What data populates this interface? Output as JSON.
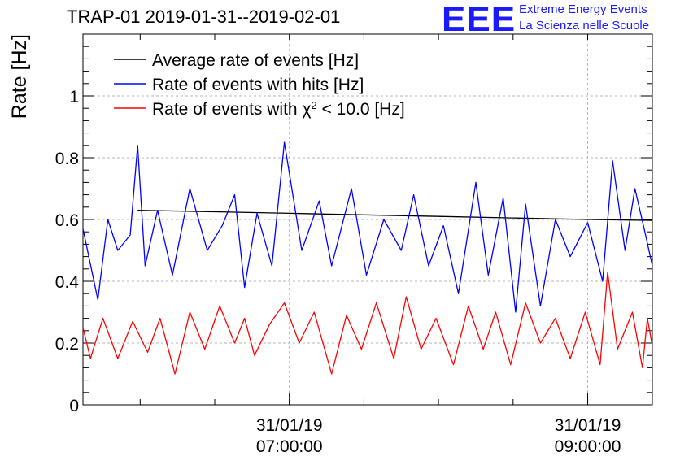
{
  "header": {
    "title": "TRAP-01 2019-01-31--2019-02-01",
    "logo_mark": "EEE",
    "logo_line1": "Extreme Energy Events",
    "logo_line2": "La Scienza nelle Scuole"
  },
  "colors": {
    "average": "#000000",
    "hits": "#0000ff",
    "chi2": "#ff0000",
    "logo": "#1a1aff"
  },
  "chart_data": {
    "type": "line",
    "title": "TRAP-01 2019-01-31--2019-02-01",
    "xlabel": "",
    "ylabel": "Rate [Hz]",
    "ylim": [
      0,
      1.2
    ],
    "yticks": [
      0,
      0.2,
      0.4,
      0.6,
      0.8,
      1
    ],
    "ytick_labels": [
      "0",
      "0.2",
      "0.4",
      "0.6",
      "0.8",
      "1"
    ],
    "xlim": [
      "31/01/19 05:37:00",
      "31/01/19 09:26:00"
    ],
    "xticks": [
      {
        "t": "31/01/19 07:00:00",
        "label_date": "31/01/19",
        "label_time": "07:00:00"
      },
      {
        "t": "31/01/19 09:00:00",
        "label_date": "31/01/19",
        "label_time": "09:00:00"
      }
    ],
    "grid": true,
    "legend_position": "top-left",
    "legend": [
      {
        "label": "Average rate of events [Hz]",
        "series": "average"
      },
      {
        "label": "Rate of events with hits [Hz]",
        "series": "hits"
      },
      {
        "label_prefix": "Rate of events with ",
        "label_symbol": "χ",
        "label_sup": "2",
        "label_suffix": " < 10.0 [Hz]",
        "series": "chi2"
      }
    ],
    "series": [
      {
        "key": "average",
        "x": [
          "31/01/19 05:59:00",
          "31/01/19 06:30:00",
          "31/01/19 07:00:00",
          "31/01/19 07:30:00",
          "31/01/19 08:00:00",
          "31/01/19 08:30:00",
          "31/01/19 09:00:00",
          "31/01/19 09:26:00"
        ],
        "values": [
          0.63,
          0.625,
          0.62,
          0.615,
          0.61,
          0.605,
          0.6,
          0.597
        ]
      },
      {
        "key": "hits",
        "x": [
          "31/01/19 05:37:00",
          "31/01/19 05:43:00",
          "31/01/19 05:47:00",
          "31/01/19 05:51:00",
          "31/01/19 05:56:00",
          "31/01/19 05:59:00",
          "31/01/19 06:02:00",
          "31/01/19 06:07:00",
          "31/01/19 06:13:00",
          "31/01/19 06:20:00",
          "31/01/19 06:27:00",
          "31/01/19 06:33:00",
          "31/01/19 06:38:00",
          "31/01/19 06:42:00",
          "31/01/19 06:47:00",
          "31/01/19 06:53:00",
          "31/01/19 06:58:00",
          "31/01/19 07:05:00",
          "31/01/19 07:12:00",
          "31/01/19 07:17:00",
          "31/01/19 07:25:00",
          "31/01/19 07:31:00",
          "31/01/19 07:38:00",
          "31/01/19 07:45:00",
          "31/01/19 07:50:00",
          "31/01/19 07:56:00",
          "31/01/19 08:02:00",
          "31/01/19 08:08:00",
          "31/01/19 08:15:00",
          "31/01/19 08:20:00",
          "31/01/19 08:26:00",
          "31/01/19 08:31:00",
          "31/01/19 08:35:00",
          "31/01/19 08:41:00",
          "31/01/19 08:47:00",
          "31/01/19 08:53:00",
          "31/01/19 09:00:00",
          "31/01/19 09:06:00",
          "31/01/19 09:10:00",
          "31/01/19 09:15:00",
          "31/01/19 09:19:00",
          "31/01/19 09:23:00",
          "31/01/19 09:26:00"
        ],
        "values": [
          0.57,
          0.34,
          0.6,
          0.5,
          0.55,
          0.84,
          0.45,
          0.63,
          0.42,
          0.7,
          0.5,
          0.58,
          0.68,
          0.38,
          0.62,
          0.45,
          0.85,
          0.5,
          0.66,
          0.45,
          0.7,
          0.42,
          0.6,
          0.5,
          0.68,
          0.45,
          0.58,
          0.36,
          0.72,
          0.42,
          0.67,
          0.3,
          0.65,
          0.32,
          0.6,
          0.48,
          0.59,
          0.4,
          0.79,
          0.5,
          0.7,
          0.56,
          0.45
        ]
      },
      {
        "key": "chi2",
        "x": [
          "31/01/19 05:37:00",
          "31/01/19 05:40:00",
          "31/01/19 05:45:00",
          "31/01/19 05:51:00",
          "31/01/19 05:57:00",
          "31/01/19 06:03:00",
          "31/01/19 06:08:00",
          "31/01/19 06:14:00",
          "31/01/19 06:20:00",
          "31/01/19 06:26:00",
          "31/01/19 06:32:00",
          "31/01/19 06:38:00",
          "31/01/19 06:42:00",
          "31/01/19 06:46:00",
          "31/01/19 06:52:00",
          "31/01/19 06:58:00",
          "31/01/19 07:04:00",
          "31/01/19 07:10:00",
          "31/01/19 07:17:00",
          "31/01/19 07:23:00",
          "31/01/19 07:29:00",
          "31/01/19 07:35:00",
          "31/01/19 07:42:00",
          "31/01/19 07:47:00",
          "31/01/19 07:53:00",
          "31/01/19 07:59:00",
          "31/01/19 08:06:00",
          "31/01/19 08:12:00",
          "31/01/19 08:18:00",
          "31/01/19 08:23:00",
          "31/01/19 08:29:00",
          "31/01/19 08:35:00",
          "31/01/19 08:41:00",
          "31/01/19 08:47:00",
          "31/01/19 08:53:00",
          "31/01/19 08:59:00",
          "31/01/19 09:05:00",
          "31/01/19 09:08:00",
          "31/01/19 09:12:00",
          "31/01/19 09:18:00",
          "31/01/19 09:22:00",
          "31/01/19 09:24:00",
          "31/01/19 09:26:00"
        ],
        "values": [
          0.25,
          0.15,
          0.28,
          0.15,
          0.27,
          0.17,
          0.28,
          0.1,
          0.3,
          0.18,
          0.32,
          0.2,
          0.28,
          0.16,
          0.26,
          0.33,
          0.2,
          0.3,
          0.1,
          0.29,
          0.18,
          0.33,
          0.15,
          0.35,
          0.18,
          0.28,
          0.13,
          0.32,
          0.18,
          0.3,
          0.13,
          0.33,
          0.2,
          0.28,
          0.15,
          0.3,
          0.13,
          0.43,
          0.18,
          0.3,
          0.12,
          0.28,
          0.19
        ]
      }
    ]
  }
}
